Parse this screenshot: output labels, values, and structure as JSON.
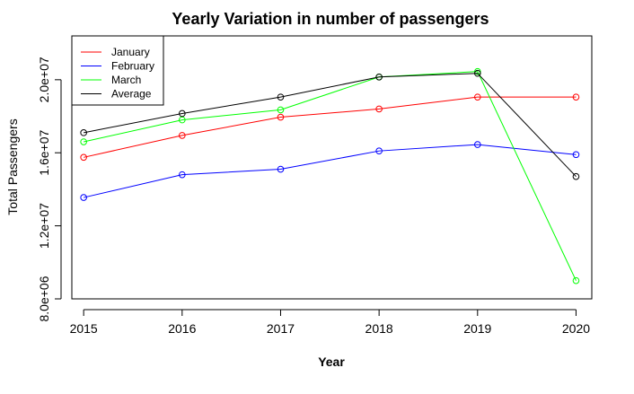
{
  "chart_data": {
    "type": "line",
    "title": "Yearly Variation in number of passengers",
    "xlabel": "Year",
    "ylabel": "Total Passengers",
    "x": [
      2015,
      2016,
      2017,
      2018,
      2019,
      2020
    ],
    "xlim": [
      2014.88,
      2020.16
    ],
    "ylim": [
      8000000,
      22400000
    ],
    "xticks": [
      2015,
      2016,
      2017,
      2018,
      2019,
      2020
    ],
    "xtick_labels": [
      "2015",
      "2016",
      "2017",
      "2018",
      "2019",
      "2020"
    ],
    "yticks": [
      8000000,
      12000000,
      16000000,
      20000000
    ],
    "ytick_labels": [
      "8.0e+06",
      "1.2e+07",
      "1.6e+07",
      "2.0e+07"
    ],
    "grid": false,
    "legend_position": "top-left",
    "series": [
      {
        "name": "January",
        "color": "#ff0000",
        "values": [
          15750000,
          16950000,
          17950000,
          18400000,
          19050000,
          19050000
        ]
      },
      {
        "name": "February",
        "color": "#0000ff",
        "values": [
          13550000,
          14800000,
          15100000,
          16100000,
          16450000,
          15900000
        ]
      },
      {
        "name": "March",
        "color": "#00ff00",
        "values": [
          16600000,
          17800000,
          18350000,
          20150000,
          20450000,
          9000000
        ]
      },
      {
        "name": "Average",
        "color": "#000000",
        "values": [
          17100000,
          18150000,
          19050000,
          20150000,
          20350000,
          14700000
        ]
      }
    ]
  }
}
